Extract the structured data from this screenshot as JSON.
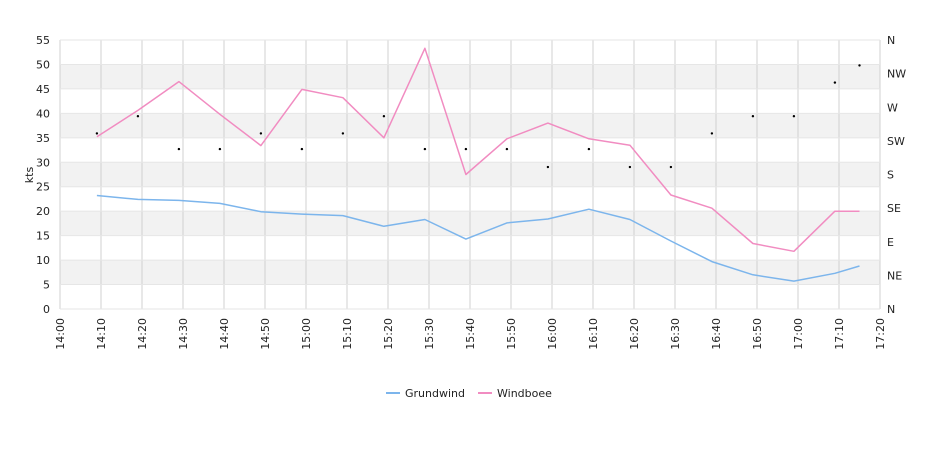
{
  "chart_data": {
    "type": "line",
    "ylabel": "kts",
    "ylim": [
      0,
      55
    ],
    "yticks": [
      0,
      5,
      10,
      15,
      20,
      25,
      30,
      35,
      40,
      45,
      50,
      55
    ],
    "xlim": [
      "14:00",
      "17:20"
    ],
    "xticks": [
      "14:00",
      "14:10",
      "14:20",
      "14:30",
      "14:40",
      "14:50",
      "15:00",
      "15:10",
      "15:20",
      "15:30",
      "15:40",
      "15:50",
      "16:00",
      "16:10",
      "16:20",
      "16:30",
      "16:40",
      "16:50",
      "17:00",
      "17:10",
      "17:20"
    ],
    "direction_axis": {
      "labels": [
        "N",
        "NE",
        "E",
        "SE",
        "S",
        "SW",
        "W",
        "NW",
        "N"
      ],
      "degrees": [
        0,
        45,
        90,
        135,
        180,
        225,
        270,
        315,
        360
      ]
    },
    "series": [
      {
        "name": "Grundwind",
        "color": "#7cb5ec",
        "points": [
          [
            "14:09",
            23.2
          ],
          [
            "14:19",
            22.4
          ],
          [
            "14:29",
            22.2
          ],
          [
            "14:39",
            21.6
          ],
          [
            "14:49",
            19.9
          ],
          [
            "14:59",
            19.4
          ],
          [
            "15:09",
            19.1
          ],
          [
            "15:19",
            16.9
          ],
          [
            "15:29",
            18.3
          ],
          [
            "15:39",
            14.3
          ],
          [
            "15:49",
            17.6
          ],
          [
            "15:59",
            18.4
          ],
          [
            "16:09",
            20.4
          ],
          [
            "16:19",
            18.3
          ],
          [
            "16:29",
            13.9
          ],
          [
            "16:39",
            9.7
          ],
          [
            "16:49",
            7.0
          ],
          [
            "16:59",
            5.7
          ],
          [
            "17:09",
            7.3
          ],
          [
            "17:15",
            8.8
          ]
        ]
      },
      {
        "name": "Windboee",
        "color": "#f18cc1",
        "points": [
          [
            "14:09",
            35.2
          ],
          [
            "14:19",
            40.6
          ],
          [
            "14:29",
            46.5
          ],
          [
            "14:39",
            39.8
          ],
          [
            "14:49",
            33.4
          ],
          [
            "14:59",
            44.9
          ],
          [
            "15:09",
            43.2
          ],
          [
            "15:19",
            35.0
          ],
          [
            "15:29",
            53.3
          ],
          [
            "15:39",
            27.5
          ],
          [
            "15:49",
            34.8
          ],
          [
            "15:59",
            38.0
          ],
          [
            "16:09",
            34.8
          ],
          [
            "16:19",
            33.5
          ],
          [
            "16:29",
            23.3
          ],
          [
            "16:39",
            20.6
          ],
          [
            "16:49",
            13.4
          ],
          [
            "16:59",
            11.8
          ],
          [
            "17:09",
            20.0
          ],
          [
            "17:15",
            20.0
          ]
        ]
      }
    ],
    "direction_markers": {
      "color": "#000000",
      "points": [
        [
          "14:09",
          235
        ],
        [
          "14:19",
          258
        ],
        [
          "14:29",
          214
        ],
        [
          "14:39",
          214
        ],
        [
          "14:49",
          235
        ],
        [
          "14:59",
          214
        ],
        [
          "15:09",
          235
        ],
        [
          "15:19",
          258
        ],
        [
          "15:29",
          214
        ],
        [
          "15:39",
          214
        ],
        [
          "15:49",
          214
        ],
        [
          "15:59",
          190
        ],
        [
          "16:09",
          214
        ],
        [
          "16:19",
          190
        ],
        [
          "16:29",
          190
        ],
        [
          "16:39",
          235
        ],
        [
          "16:49",
          258
        ],
        [
          "16:59",
          258
        ],
        [
          "17:09",
          303
        ],
        [
          "17:15",
          326
        ]
      ]
    },
    "grid": true,
    "legend_position": "bottom-center"
  }
}
